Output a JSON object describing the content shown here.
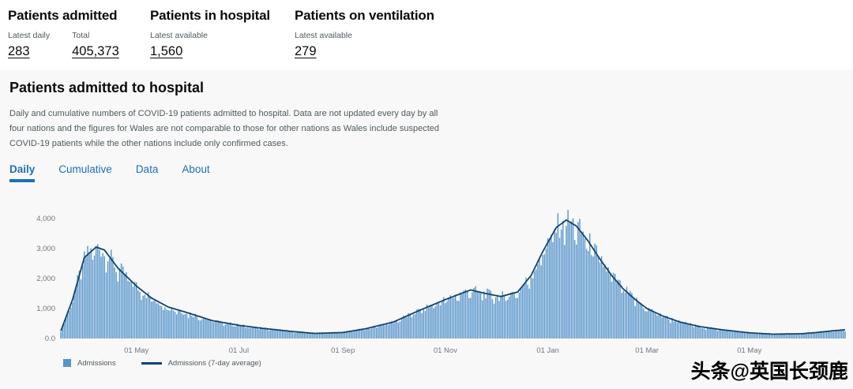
{
  "headline": {
    "cards": [
      {
        "title": "Patients admitted",
        "metrics": [
          {
            "label": "Latest daily",
            "value": "283"
          },
          {
            "label": "Total",
            "value": "405,373"
          }
        ]
      },
      {
        "title": "Patients in hospital",
        "metrics": [
          {
            "label": "Latest available",
            "value": "1,560"
          }
        ]
      },
      {
        "title": "Patients on ventilation",
        "metrics": [
          {
            "label": "Latest available",
            "value": "279"
          }
        ]
      }
    ]
  },
  "section": {
    "title": "Patients admitted to hospital",
    "description": "Daily and cumulative numbers of COVID-19 patients admitted to hospital. Data are not updated every day by all four nations and the figures for Wales are not comparable to those for other nations as Wales include suspected COVID-19 patients while the other nations include only confirmed cases.",
    "tabs": [
      {
        "label": "Daily",
        "active": true
      },
      {
        "label": "Cumulative",
        "active": false
      },
      {
        "label": "Data",
        "active": false
      },
      {
        "label": "About",
        "active": false
      }
    ]
  },
  "chart_data": {
    "type": "bar",
    "title": "Patients admitted to hospital (daily)",
    "ylabel": "",
    "xlabel": "",
    "ylim": [
      0,
      4300
    ],
    "grid": false,
    "legend_position": "bottom-left",
    "y_ticks": [
      {
        "value": 0,
        "label": "0.0"
      },
      {
        "value": 1000,
        "label": "1,000"
      },
      {
        "value": 2000,
        "label": "2,000"
      },
      {
        "value": 3000,
        "label": "3,000"
      },
      {
        "value": 4000,
        "label": "4,000"
      }
    ],
    "x_ticks": [
      {
        "date": "2020-05-01",
        "label": "01 May"
      },
      {
        "date": "2020-07-01",
        "label": "01 Jul"
      },
      {
        "date": "2020-09-01",
        "label": "01 Sep"
      },
      {
        "date": "2020-11-01",
        "label": "01 Nov"
      },
      {
        "date": "2021-01-01",
        "label": "01 Jan"
      },
      {
        "date": "2021-03-01",
        "label": "01 Mar"
      },
      {
        "date": "2021-05-01",
        "label": "01 May"
      }
    ],
    "series": [
      {
        "name": "Admissions",
        "kind": "bar",
        "color": "#5694ca"
      },
      {
        "name": "Admissions (7-day average)",
        "kind": "line",
        "color": "#12436d"
      }
    ],
    "keypoints": [
      [
        "2020-03-17",
        250
      ],
      [
        "2020-03-24",
        1300
      ],
      [
        "2020-03-31",
        2700
      ],
      [
        "2020-04-07",
        3050
      ],
      [
        "2020-04-12",
        2950
      ],
      [
        "2020-04-20",
        2350
      ],
      [
        "2020-05-01",
        1750
      ],
      [
        "2020-05-10",
        1350
      ],
      [
        "2020-05-20",
        1050
      ],
      [
        "2020-06-01",
        850
      ],
      [
        "2020-06-15",
        600
      ],
      [
        "2020-07-01",
        440
      ],
      [
        "2020-07-15",
        340
      ],
      [
        "2020-08-01",
        240
      ],
      [
        "2020-08-15",
        170
      ],
      [
        "2020-09-01",
        200
      ],
      [
        "2020-09-15",
        330
      ],
      [
        "2020-10-01",
        550
      ],
      [
        "2020-10-15",
        900
      ],
      [
        "2020-11-01",
        1300
      ],
      [
        "2020-11-16",
        1620
      ],
      [
        "2020-11-25",
        1500
      ],
      [
        "2020-12-04",
        1400
      ],
      [
        "2020-12-14",
        1550
      ],
      [
        "2020-12-22",
        2100
      ],
      [
        "2020-12-29",
        2900
      ],
      [
        "2021-01-06",
        3700
      ],
      [
        "2021-01-12",
        3950
      ],
      [
        "2021-01-18",
        3750
      ],
      [
        "2021-01-25",
        3250
      ],
      [
        "2021-02-01",
        2650
      ],
      [
        "2021-02-08",
        2100
      ],
      [
        "2021-02-15",
        1650
      ],
      [
        "2021-02-22",
        1300
      ],
      [
        "2021-03-01",
        1000
      ],
      [
        "2021-03-10",
        760
      ],
      [
        "2021-03-20",
        560
      ],
      [
        "2021-04-01",
        400
      ],
      [
        "2021-04-15",
        290
      ],
      [
        "2021-05-01",
        190
      ],
      [
        "2021-05-15",
        145
      ],
      [
        "2021-06-01",
        160
      ],
      [
        "2021-06-10",
        200
      ],
      [
        "2021-06-20",
        260
      ],
      [
        "2021-06-27",
        290
      ]
    ]
  },
  "watermark": "头条@英国长颈鹿",
  "colors": {
    "accent_blue": "#1d70b8",
    "bar_blue": "#5694ca",
    "line_navy": "#12436d",
    "panel_grey": "#f8f8f8",
    "secondary_text": "#505a5f"
  }
}
